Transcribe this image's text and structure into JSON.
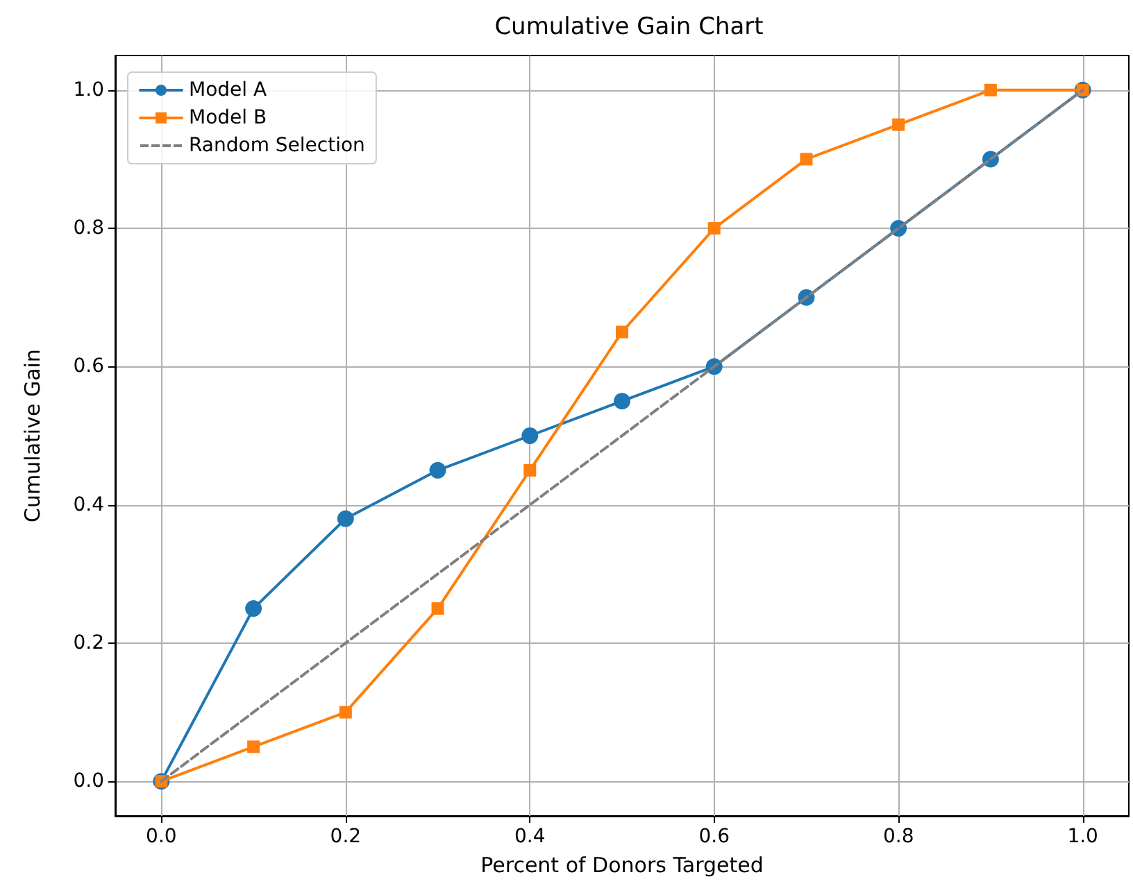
{
  "chart_data": {
    "type": "line",
    "title": "Cumulative Gain Chart",
    "xlabel": "Percent of Donors Targeted",
    "ylabel": "Cumulative Gain",
    "x": [
      0,
      0.1,
      0.2,
      0.3,
      0.4,
      0.5,
      0.6,
      0.7,
      0.8,
      0.9,
      1.0
    ],
    "series": [
      {
        "name": "Model A",
        "color": "#1f77b4",
        "marker": "circle",
        "line_style": "solid",
        "values": [
          0,
          0.25,
          0.38,
          0.45,
          0.5,
          0.55,
          0.6,
          0.7,
          0.8,
          0.9,
          1.0
        ]
      },
      {
        "name": "Model B",
        "color": "#ff7f0e",
        "marker": "square",
        "line_style": "solid",
        "values": [
          0,
          0.05,
          0.1,
          0.25,
          0.45,
          0.65,
          0.8,
          0.9,
          0.95,
          1.0,
          1.0
        ]
      },
      {
        "name": "Random Selection",
        "color": "#808080",
        "marker": "none",
        "line_style": "dashed",
        "x": [
          0,
          1
        ],
        "values": [
          0,
          1
        ]
      }
    ],
    "xlim": [
      -0.05,
      1.05
    ],
    "ylim": [
      -0.05,
      1.05
    ],
    "xticks": [
      {
        "value": 0,
        "label": "0.0"
      },
      {
        "value": 0.2,
        "label": "0.2"
      },
      {
        "value": 0.4,
        "label": "0.4"
      },
      {
        "value": 0.6,
        "label": "0.6"
      },
      {
        "value": 0.8,
        "label": "0.8"
      },
      {
        "value": 1.0,
        "label": "1.0"
      }
    ],
    "yticks": [
      {
        "value": 0,
        "label": "0.0"
      },
      {
        "value": 0.2,
        "label": "0.2"
      },
      {
        "value": 0.4,
        "label": "0.4"
      },
      {
        "value": 0.6,
        "label": "0.6"
      },
      {
        "value": 0.8,
        "label": "0.8"
      },
      {
        "value": 1.0,
        "label": "1.0"
      }
    ],
    "grid": true,
    "legend": "top left"
  }
}
